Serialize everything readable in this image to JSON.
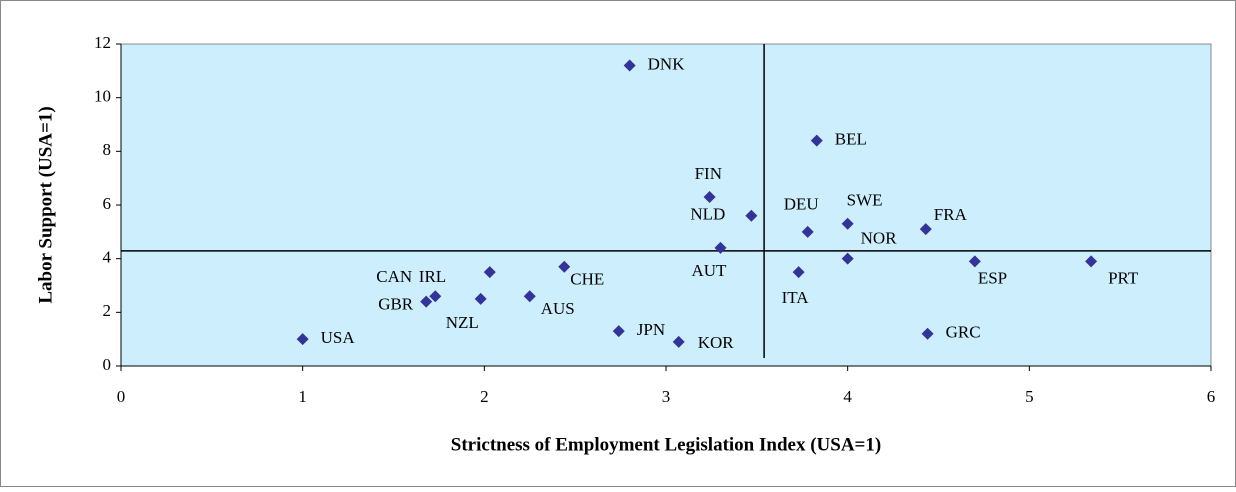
{
  "chart_data": {
    "type": "scatter",
    "xlabel": "Strictness of Employment Legislation Index (USA=1)",
    "ylabel": "Labor Support (USA=1)",
    "labels": [
      "USA",
      "GBR",
      "CAN",
      "IRL",
      "NZL",
      "AUS",
      "CHE",
      "JPN",
      "KOR",
      "DNK",
      "FIN",
      "NLD",
      "AUT",
      "ITA",
      "DEU",
      "BEL",
      "SWE",
      "NOR",
      "FRA",
      "GRC",
      "ESP",
      "PRT"
    ],
    "x": [
      1.0,
      1.68,
      1.73,
      2.03,
      1.98,
      2.25,
      2.44,
      2.74,
      3.07,
      2.8,
      3.24,
      3.47,
      3.3,
      3.73,
      3.78,
      3.83,
      4.0,
      4.0,
      4.43,
      4.44,
      4.7,
      5.34
    ],
    "values": [
      1.0,
      2.4,
      2.6,
      3.5,
      2.5,
      2.6,
      3.7,
      1.3,
      0.9,
      11.2,
      6.3,
      5.6,
      4.4,
      3.5,
      5.0,
      8.4,
      5.3,
      4.0,
      5.1,
      1.2,
      3.9,
      3.9
    ],
    "color": "#333399",
    "reference_lines": {
      "x": 3.54,
      "y": 4.29
    },
    "xlim": [
      0,
      6
    ],
    "xticks": [
      0,
      1,
      2,
      3,
      4,
      5,
      6
    ],
    "ylim": [
      0,
      12
    ],
    "yticks": [
      0,
      2,
      4,
      6,
      8,
      10,
      12
    ]
  }
}
